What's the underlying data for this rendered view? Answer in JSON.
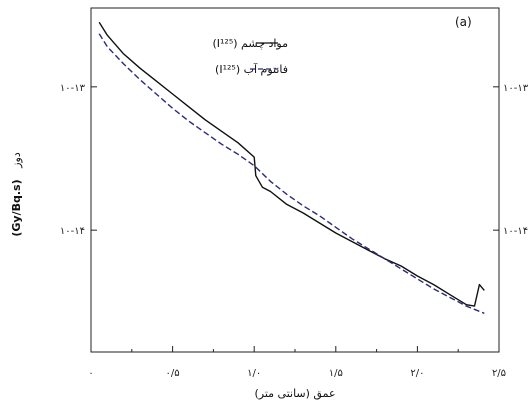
{
  "chart_data": {
    "type": "line",
    "panel_label": "(a)",
    "xlabel": "عمق (سانتی متر)",
    "ylabel_prefix": "دوز",
    "ylabel_unit": "(Gy/Bq.s)",
    "xlim": [
      0,
      2.5
    ],
    "ylim_log10": [
      -14.85,
      -12.45
    ],
    "x_ticks": [
      {
        "value": 0,
        "label": "۰"
      },
      {
        "value": 0.5,
        "label": "۰/۵"
      },
      {
        "value": 1.0,
        "label": "۱/۰"
      },
      {
        "value": 1.5,
        "label": "۱/۵"
      },
      {
        "value": 2.0,
        "label": "۲/۰"
      },
      {
        "value": 2.5,
        "label": "۲/۵"
      }
    ],
    "y_ticks": [
      {
        "log10": -13,
        "label": "۱۰-۱۳"
      },
      {
        "log10": -14,
        "label": "۱۰-۱۴"
      }
    ],
    "series": [
      {
        "name": "مواد چشم (I¹²⁵)",
        "style": "solid",
        "color": "#111111",
        "x": [
          0.05,
          0.1,
          0.2,
          0.3,
          0.4,
          0.5,
          0.6,
          0.7,
          0.8,
          0.9,
          1.0,
          1.01,
          1.05,
          1.1,
          1.2,
          1.3,
          1.4,
          1.5,
          1.6,
          1.7,
          1.8,
          1.9,
          2.0,
          2.1,
          2.2,
          2.3,
          2.35,
          2.38,
          2.41
        ],
        "y_log10": [
          -12.55,
          -12.64,
          -12.77,
          -12.87,
          -12.96,
          -13.05,
          -13.14,
          -13.23,
          -13.31,
          -13.39,
          -13.49,
          -13.62,
          -13.7,
          -13.73,
          -13.82,
          -13.88,
          -13.95,
          -14.02,
          -14.08,
          -14.14,
          -14.2,
          -14.25,
          -14.32,
          -14.38,
          -14.45,
          -14.52,
          -14.53,
          -14.38,
          -14.42
        ]
      },
      {
        "name": "فانتوم آب (I¹²⁵)",
        "style": "dashed",
        "color": "#2b2b7a",
        "x": [
          0.05,
          0.1,
          0.2,
          0.3,
          0.4,
          0.5,
          0.6,
          0.7,
          0.8,
          0.9,
          1.0,
          1.1,
          1.2,
          1.3,
          1.4,
          1.5,
          1.6,
          1.7,
          1.8,
          1.9,
          2.0,
          2.1,
          2.2,
          2.3,
          2.41
        ],
        "y_log10": [
          -12.63,
          -12.72,
          -12.84,
          -12.95,
          -13.05,
          -13.15,
          -13.24,
          -13.32,
          -13.4,
          -13.47,
          -13.55,
          -13.66,
          -13.75,
          -13.83,
          -13.9,
          -13.98,
          -14.06,
          -14.13,
          -14.2,
          -14.27,
          -14.34,
          -14.41,
          -14.47,
          -14.53,
          -14.58
        ]
      }
    ]
  }
}
